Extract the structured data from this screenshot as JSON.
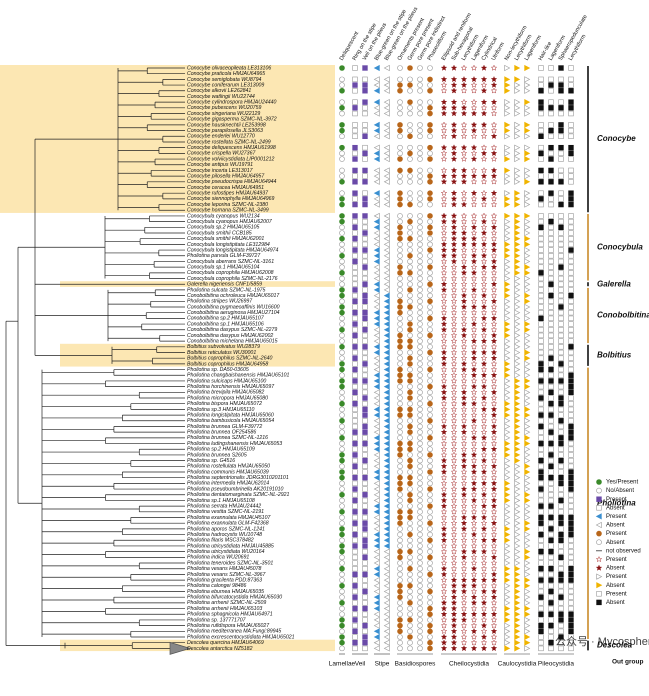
{
  "taxa": [
    "Conocybe olivaceopileata LE313106",
    "Conocybe praticola HMJAU64965",
    "Conocybe semiglobata WU8794",
    "Conocybe coniferarum LE313009",
    "Conocybe alkovii LE262841",
    "Conocybe watlingii WU22744",
    "Conocybe cylindrospora HMJAU24440",
    "Conocybe pubescens WU20759",
    "Conocybe singeriana WU22129",
    "Conocybe gigasperma SZMC-NL-3972",
    "Conocybe hausknechtii LE253998",
    "Conocybe parapilosella JLS3063",
    "Conocybe enderlei WU12770",
    "Conocybe rostellata SZMC-NL-2499",
    "Conocybe deliquescens HMJAU61998",
    "Conocybe crispella WU27367",
    "Conocybe volviicystidiata LIP0001212",
    "Conocybe antipus WU19791",
    "Conocybe incerta LE313017",
    "Conocybe pilosella HMJAU64957",
    "Conocybe pseudocrispa HMJAU64944",
    "Conocybe ceracea HMJAU64951",
    "Conocybe rufostipes HMJAU64937",
    "Conocybe siennophylla HMJAU64969",
    "Conocybe leporina SZMC-NL-2380",
    "Conocybe hornana SZMC-NL-3499",
    "Conocybula cyanopus WU2134",
    "Conocybula cyanopus HMJAU62007",
    "Conocybula sp.2 HMJAU65105",
    "Conocybula smithii CCB185",
    "Conocybula smithii HMJAU62001",
    "Conocybula longistipitata LE312984",
    "Conocybula longistipitata HMJAU64974",
    "Pholiotina parvula GLM-F39727",
    "Conocybula aberrans SZMC-NL-3161",
    "Conocybula sp.1 HMJAU65104",
    "Conocybula coprophila HMJAU62008",
    "Conocybula coprophila SZMC-NL-2176",
    "Galerella nigeriensis CNF1/5859",
    "Pholiotina sulcata SZMC-NL-1975",
    "Conobolbitina ochroleuca HMJAU65017",
    "Pholiotina striipes WU26997",
    "Conobolbitina pygmaeoaffinis WU16600",
    "Conobolbitina aeruginosa HMJAU27104",
    "Conobolbitina sp.2 HMJAU65107",
    "Conobolbitina sp.1 HMJAU65106",
    "Conobolbitina dasypus SZMC-NL-2279",
    "Conobolbitina dasypus HMJAU62002",
    "Conobolbitina michelana HMJAU65015",
    "Bolbitius subvolvatus WU28379",
    "Bolbitius reticulatus WU30001",
    "Bolbitius coprophilus SZMC-NL-2640",
    "Bolbitius coprophilus HMJAU64958",
    "Pholiotina sp. DA50-03605",
    "Pholiotina changbaishanensis HMJAU65101",
    "Pholiotina sulcicaps HMJAU65100",
    "Pholiotina horchinensis HMJAU65097",
    "Pholiotina brevipila HMJAU65082",
    "Pholiotina micropora HMJAU65080",
    "Pholiotina bispora HMJAU65072",
    "Pholiotina sp.3 HMJAU65110",
    "Pholiotina longistipitata HMJAU65060",
    "Pholiotina bambusicola HMJAU65054",
    "Pholiotina brunnea GLM-F39772",
    "Pholiotina brunnea OF254586",
    "Pholiotina brunnea SZMC-NL-1216",
    "Pholiotina ludingshanensis HMJAU65053",
    "Pholiotina sp.2 HMJAU65109",
    "Pholiotina brunnea S2605",
    "Pholiotina sp. G4516",
    "Pholiotina rostellulata HMJAU65050",
    "Pholiotina communis HMJAU65039",
    "Pholiotina septentrionalis JDRG3010201101",
    "Pholiotina intermedia HMJAU62014",
    "Pholiotina pseudoumbrinella AK20191010",
    "Pholiotina dentatomarginata SZMC-NL-2921",
    "Pholiotina sp.1 HMJAU65108",
    "Pholiotina serrata HMJAU24442",
    "Pholiotina vestita SZMC-NL-2191",
    "Pholiotina exannulata HMJAU45107",
    "Pholiotina exannulata GLM-F42368",
    "Pholiotina aporos SZMC-NL-1241",
    "Pholiotina hadrocystis WU10748",
    "Pholiotina filaris MSC378482",
    "Pholiotina utricystidiata HMJAU45885",
    "Pholiotina utricystidiata WU20164",
    "Pholiotina indica WU20691",
    "Pholiotina teneroides SZMC-NL-3501",
    "Pholiotina vexans HMJAU45078",
    "Pholiotina vexans SZMC-NL-3967",
    "Pholiotina gracilenta PDD:87363",
    "Pholiotina calongei 98486",
    "Pholiotina eburnea HMJAU65035",
    "Pholiotina bifurcatocystidia HMJAU65030",
    "Pholiotina arrhenii SZMC-NL-2509",
    "Pholiotina arrhenii HMJAU65103",
    "Pholiotina sphagnicola HMJAU64971",
    "Pholiotina sp. 137771707",
    "Pholiotina rufidispora HMJAU65027",
    "Pholiotina mediterranea MA:Fungi:89945",
    "Pholiotina excrescentocystidiata HMJAU65021",
    "Descolea quercina HMJAU64069",
    "Descolea antarctica NZ5182"
  ],
  "clades": [
    "Conocybe",
    "Conocybula",
    "Galerella",
    "Conobolbitina",
    "Bolbitius",
    "Pholiotina",
    "Descolea"
  ],
  "columns": [
    "Deliquescent",
    "Ring on the stipe",
    "Veil on the pileus",
    "Blue-green on the stipe",
    "Blue-green on the pileus",
    "Ornaments present",
    "Germ pore present",
    "Germ pore indistinct",
    "Phaseoliform",
    "Ellipsoid and reniform",
    "Sub-hexagonal",
    "Lecythiform",
    "Lageniform",
    "Cylindrical",
    "Utriform",
    "Non-lecythiform",
    "Lecythiform",
    "Lageniform",
    "Hair-like",
    "Lageniform",
    "Sphaeropedunculate",
    "Lecythiform"
  ],
  "groups": [
    "Lamellae",
    "Veil",
    "Stipe",
    "Basidiospores",
    "Cheilocystidia",
    "Caulocystidia",
    "Pileocystidia"
  ],
  "outgroup": "Out group",
  "legend": [
    "Yes/Present",
    "No/Absent",
    "Present",
    "Absent",
    "Present",
    "Absent",
    "Present",
    "Absent",
    "not observed",
    "Present",
    "Absent",
    "Present",
    "Absent",
    "Present",
    "Absent"
  ],
  "watermark": "公众号 · Mycosphere"
}
